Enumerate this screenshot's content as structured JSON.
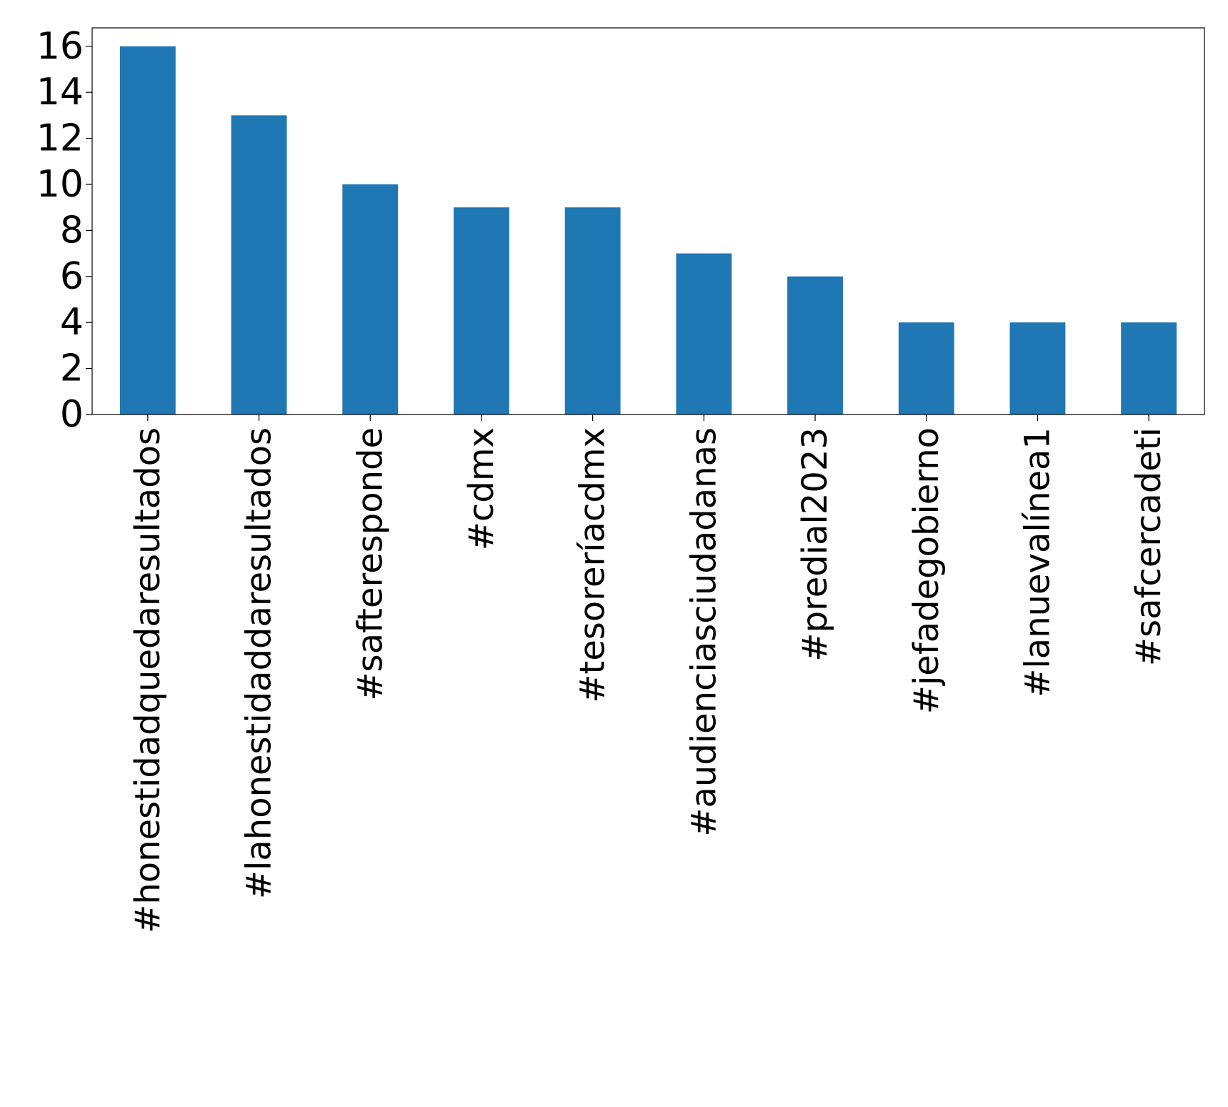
{
  "chart_data": {
    "type": "bar",
    "title": "",
    "xlabel": "",
    "ylabel": "",
    "categories": [
      "#honestidadquedaresultados",
      "#lahonestidaddaresultados",
      "#safteresponde",
      "#cdmx",
      "#tesoreríacdmx",
      "#audienciasciudadanas",
      "#predial2023",
      "#jefadegobierno",
      "#lanuevalínea1",
      "#safcercadeti"
    ],
    "values": [
      16,
      13,
      10,
      9,
      9,
      7,
      6,
      4,
      4,
      4
    ],
    "ylim": [
      0,
      16.8
    ],
    "yticks": [
      "0",
      "2",
      "4",
      "6",
      "8",
      "10",
      "12",
      "14",
      "16"
    ],
    "grid": false,
    "legend": "none",
    "bar_color": "#1f77b4",
    "axis_color": "#000000"
  }
}
